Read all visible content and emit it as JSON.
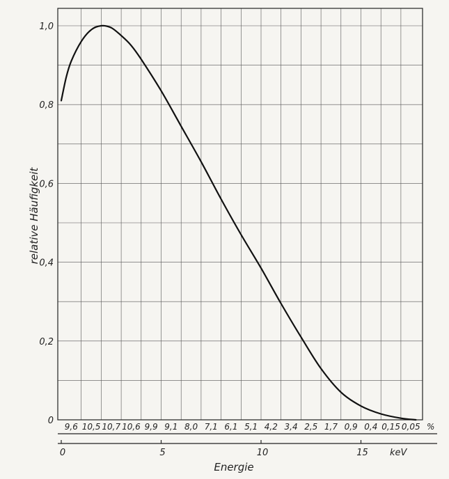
{
  "chart_data": {
    "type": "line",
    "title": "",
    "xlabel": "Energie",
    "ylabel": "relative Häufigkeit",
    "x_unit": "keV",
    "percent_unit": "%",
    "xlim": [
      0,
      17.5
    ],
    "ylim": [
      0,
      1.0
    ],
    "x_ticks": [
      0,
      5,
      10,
      15
    ],
    "y_ticks": [
      0,
      0.2,
      0.4,
      0.6,
      0.8,
      1.0
    ],
    "y_tick_labels": [
      "0",
      "0,2",
      "0,4",
      "0,6",
      "0,8",
      "1,0"
    ],
    "grid": true,
    "series": [
      {
        "x": [
          0,
          0.25,
          0.5,
          1.0,
          1.5,
          2.0,
          2.5,
          3.0,
          3.5,
          4.0,
          5.0,
          6.0,
          7.0,
          8.0,
          9.0,
          10.0,
          11.0,
          12.0,
          13.0,
          14.0,
          15.0,
          16.0,
          17.0,
          17.75
        ],
        "y": [
          0.81,
          0.87,
          0.91,
          0.96,
          0.99,
          1.0,
          0.995,
          0.975,
          0.95,
          0.915,
          0.835,
          0.745,
          0.655,
          0.56,
          0.47,
          0.385,
          0.295,
          0.21,
          0.13,
          0.07,
          0.035,
          0.015,
          0.004,
          0.0
        ]
      }
    ],
    "interval_percentages": [
      "9,6",
      "10,5",
      "10,7",
      "10,6",
      "9,9",
      "9,1",
      "8,0",
      "7,1",
      "6,1",
      "5,1",
      "4,2",
      "3,4",
      "2,5",
      "1,7",
      "0,9",
      "0,4",
      "0,15",
      "0,05"
    ]
  }
}
